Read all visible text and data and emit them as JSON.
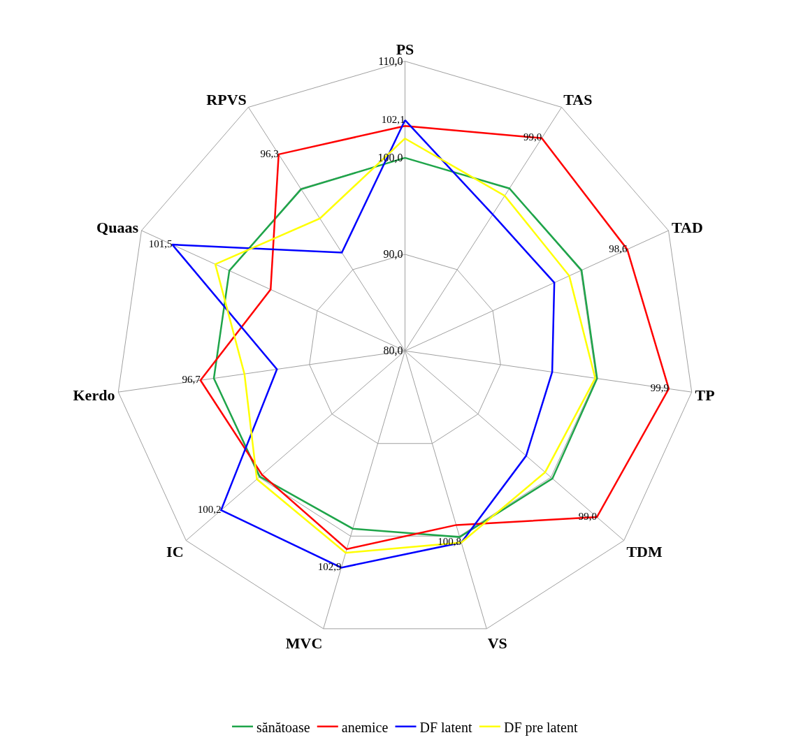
{
  "chart_data": {
    "type": "radar",
    "categories": [
      "PS",
      "TAS",
      "TAD",
      "TP",
      "TDM",
      "VS",
      "MVC",
      "IC",
      "Kerdo",
      "Quaas",
      "RPVS"
    ],
    "series": [
      {
        "name": "sănătoase",
        "color": "#1fa54a",
        "values": [
          100.0,
          100.0,
          100.1,
          100.1,
          100.2,
          100.1,
          99.2,
          99.9,
          100.0,
          100.0,
          99.9
        ]
      },
      {
        "name": "anemice",
        "color": "#ff0000",
        "values": [
          103.3,
          106.2,
          105.3,
          107.6,
          106.3,
          98.8,
          101.4,
          99.6,
          101.4,
          95.3,
          104.2
        ]
      },
      {
        "name": "DF latent",
        "color": "#0000ff",
        "values": [
          103.9,
          96.8,
          97.0,
          95.4,
          96.6,
          100.7,
          103.4,
          105.2,
          93.4,
          106.5,
          92.1
        ]
      },
      {
        "name": "DF pre latent",
        "color": "#ffff00",
        "values": [
          102.0,
          99.1,
          98.7,
          99.9,
          99.2,
          100.7,
          101.8,
          100.3,
          96.8,
          101.6,
          96.3
        ]
      }
    ],
    "ylim": [
      80,
      110
    ],
    "yticks": [
      {
        "value": 80,
        "label": "80,0"
      },
      {
        "value": 90,
        "label": "90,0"
      },
      {
        "value": 100,
        "label": "100,0"
      },
      {
        "value": 110,
        "label": "110,0"
      }
    ],
    "annotations": [
      "102,1",
      "99,0",
      "98,6",
      "99,9",
      "99,0",
      "100,8",
      "102,9",
      "100,2",
      "96,7",
      "101,5",
      "96,3"
    ],
    "legend": "bottom",
    "grid": true,
    "marker": "none",
    "line_style": "solid"
  }
}
